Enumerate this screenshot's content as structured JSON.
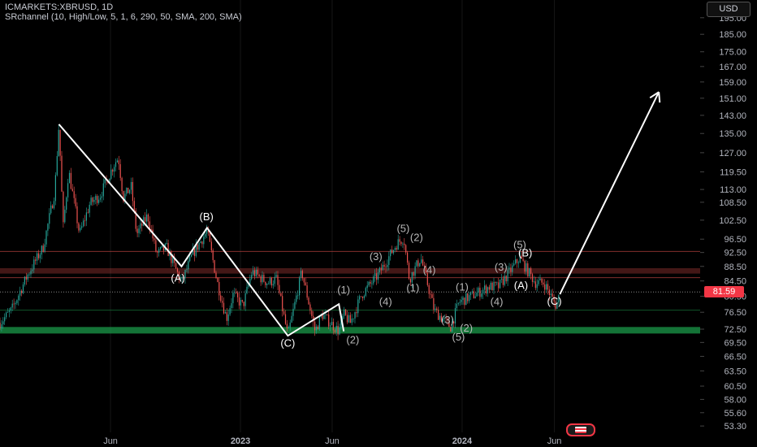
{
  "header": {
    "symbol_line": "ICMARKETS:XBRUSD, 1D",
    "indicator_line": "SRchannel (10, High/Low, 5, 1, 6, 290, 50, SMA, 200, SMA)"
  },
  "currency_button": "USD",
  "last_price_label": "81.59",
  "colors": {
    "background": "#000000",
    "candle_up": "#26a69a",
    "candle_down": "#ef5350",
    "resistance_zone": "#ef5350",
    "support_zone": "#1b9a4a",
    "wave_line": "#ffffff",
    "last_price": "#f23645"
  },
  "chart_data": {
    "type": "candlestick",
    "y_scale": "log",
    "ylim": [
      52.5,
      200
    ],
    "price_ticks": [
      "195.00",
      "185.00",
      "175.00",
      "167.00",
      "159.00",
      "151.00",
      "143.00",
      "135.00",
      "127.00",
      "119.50",
      "113.00",
      "108.50",
      "102.50",
      "96.50",
      "92.50",
      "88.50",
      "84.50",
      "80.50",
      "76.50",
      "72.50",
      "69.50",
      "66.50",
      "63.50",
      "60.50",
      "58.00",
      "55.60",
      "53.30"
    ],
    "time_ticks": [
      {
        "label": "Jun",
        "date": "2022-06-01"
      },
      {
        "label": "2023",
        "date": "2023-01-01"
      },
      {
        "label": "Jun",
        "date": "2023-06-01"
      },
      {
        "label": "2024",
        "date": "2024-01-01"
      },
      {
        "label": "Jun",
        "date": "2024-06-01"
      }
    ],
    "xlim": [
      "2021-12-01",
      "2025-01-27"
    ],
    "zones": [
      {
        "kind": "resistance",
        "from": 86.5,
        "to": 88.0
      },
      {
        "kind": "support",
        "from": 71.5,
        "to": 73.0
      }
    ],
    "levels": [
      92.8,
      85.4,
      77.0
    ],
    "last_price": 81.59,
    "price_path": [
      [
        "2021-12-01",
        74
      ],
      [
        "2021-12-20",
        77
      ],
      [
        "2022-01-15",
        86
      ],
      [
        "2022-02-10",
        94
      ],
      [
        "2022-03-01",
        112
      ],
      [
        "2022-03-08",
        139
      ],
      [
        "2022-03-15",
        100
      ],
      [
        "2022-03-24",
        120
      ],
      [
        "2022-04-11",
        98
      ],
      [
        "2022-04-28",
        108
      ],
      [
        "2022-05-15",
        111
      ],
      [
        "2022-06-08",
        123
      ],
      [
        "2022-06-14",
        125
      ],
      [
        "2022-06-22",
        110
      ],
      [
        "2022-07-05",
        114
      ],
      [
        "2022-07-14",
        98
      ],
      [
        "2022-08-01",
        104
      ],
      [
        "2022-08-16",
        92
      ],
      [
        "2022-09-01",
        94
      ],
      [
        "2022-09-26",
        84
      ],
      [
        "2022-10-14",
        92
      ],
      [
        "2022-11-07",
        99
      ],
      [
        "2022-11-24",
        84
      ],
      [
        "2022-12-09",
        75
      ],
      [
        "2022-12-20",
        81
      ],
      [
        "2023-01-05",
        78
      ],
      [
        "2023-01-20",
        87
      ],
      [
        "2023-02-15",
        84
      ],
      [
        "2023-03-01",
        85
      ],
      [
        "2023-03-20",
        71
      ],
      [
        "2023-04-12",
        87
      ],
      [
        "2023-05-04",
        72
      ],
      [
        "2023-05-15",
        76
      ],
      [
        "2023-06-12",
        72
      ],
      [
        "2023-06-20",
        76
      ],
      [
        "2023-07-01",
        74
      ],
      [
        "2023-07-20",
        81
      ],
      [
        "2023-08-15",
        86
      ],
      [
        "2023-09-15",
        95
      ],
      [
        "2023-09-27",
        97
      ],
      [
        "2023-10-06",
        85
      ],
      [
        "2023-10-25",
        91
      ],
      [
        "2023-11-16",
        77
      ],
      [
        "2023-12-13",
        73
      ],
      [
        "2023-12-27",
        79
      ],
      [
        "2024-01-22",
        81
      ],
      [
        "2024-02-15",
        83
      ],
      [
        "2024-03-01",
        83
      ],
      [
        "2024-03-15",
        86
      ],
      [
        "2024-04-05",
        91
      ],
      [
        "2024-04-15",
        88
      ],
      [
        "2024-05-01",
        84
      ],
      [
        "2024-05-15",
        84
      ],
      [
        "2024-06-04",
        78
      ],
      [
        "2024-06-10",
        81.59
      ]
    ],
    "wave_lines": [
      [
        [
          "2022-03-08",
          139
        ],
        [
          "2022-09-26",
          88.5
        ],
        [
          "2022-11-07",
          100
        ],
        [
          "2023-03-20",
          71
        ],
        [
          "2023-06-12",
          78.5
        ],
        [
          "2023-06-20",
          72
        ]
      ]
    ],
    "projection": [
      [
        "2024-06-10",
        81
      ],
      [
        "2024-11-20",
        154
      ]
    ],
    "labels": [
      {
        "text": "(B)",
        "date": "2022-11-06",
        "price": 102.5,
        "style": "bright"
      },
      {
        "text": "(A)",
        "date": "2022-09-20",
        "price": 84.3,
        "style": "bright"
      },
      {
        "text": "(C)",
        "date": "2023-03-20",
        "price": 68.6,
        "style": "bright"
      },
      {
        "text": "(1)",
        "date": "2023-06-20",
        "price": 81.2,
        "style": "dim"
      },
      {
        "text": "(2)",
        "date": "2023-07-05",
        "price": 69.3,
        "style": "dim"
      },
      {
        "text": "(3)",
        "date": "2023-08-12",
        "price": 90.3,
        "style": "dim"
      },
      {
        "text": "(4)",
        "date": "2023-08-28",
        "price": 78.2,
        "style": "dim"
      },
      {
        "text": "(5)",
        "date": "2023-09-26",
        "price": 98.7,
        "style": "dim"
      },
      {
        "text": "(2)",
        "date": "2023-10-18",
        "price": 96.0,
        "style": "dim"
      },
      {
        "text": "(1)",
        "date": "2023-10-12",
        "price": 81.7,
        "style": "dim"
      },
      {
        "text": "(4)",
        "date": "2023-11-08",
        "price": 86.5,
        "style": "dim"
      },
      {
        "text": "(1)",
        "date": "2024-01-01",
        "price": 82.0,
        "style": "dim"
      },
      {
        "text": "(3)",
        "date": "2023-12-08",
        "price": 73.8,
        "style": "dim"
      },
      {
        "text": "(2)",
        "date": "2024-01-08",
        "price": 71.9,
        "style": "dim"
      },
      {
        "text": "(5)",
        "date": "2023-12-26",
        "price": 69.9,
        "style": "dim"
      },
      {
        "text": "(3)",
        "date": "2024-03-05",
        "price": 87.3,
        "style": "dim"
      },
      {
        "text": "(4)",
        "date": "2024-02-27",
        "price": 78.2,
        "style": "dim"
      },
      {
        "text": "(5)",
        "date": "2024-04-05",
        "price": 93.7,
        "style": "dim"
      },
      {
        "text": "(B)",
        "date": "2024-04-14",
        "price": 91.3,
        "style": "bright"
      },
      {
        "text": "(A)",
        "date": "2024-04-07",
        "price": 82.4,
        "style": "bright"
      },
      {
        "text": "(C)",
        "date": "2024-06-01",
        "price": 78.3,
        "style": "bright"
      }
    ]
  }
}
